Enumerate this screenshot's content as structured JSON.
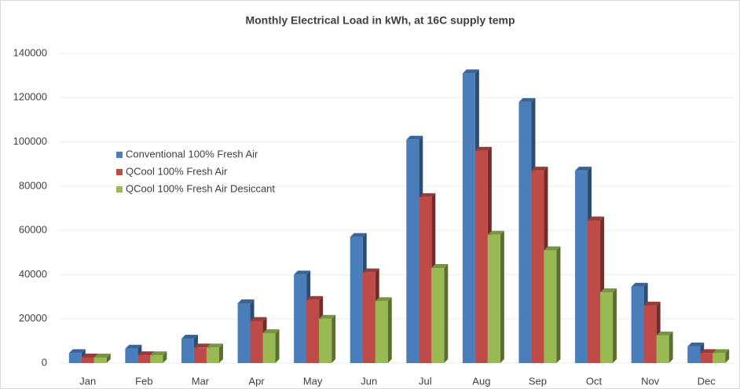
{
  "chart_data": {
    "type": "bar",
    "title": "Monthly Electrical Load in kWh, at 16C supply temp",
    "categories": [
      "Jan",
      "Feb",
      "Mar",
      "Apr",
      "May",
      "Jun",
      "Jul",
      "Aug",
      "Sep",
      "Oct",
      "Nov",
      "Dec"
    ],
    "series": [
      {
        "name": "Conventional 100% Fresh Air",
        "color": "#4a7ebb",
        "values": [
          4500,
          6500,
          11000,
          27000,
          40000,
          57000,
          101000,
          131000,
          118000,
          87000,
          34500,
          7500
        ]
      },
      {
        "name": "QCool 100% Fresh Air",
        "color": "#be4b48",
        "values": [
          2500,
          3500,
          7000,
          19000,
          28500,
          41000,
          75000,
          96000,
          87000,
          64500,
          26000,
          4500
        ]
      },
      {
        "name": "QCool 100% Fresh Air Desiccant",
        "color": "#98b954",
        "values": [
          2500,
          3500,
          7000,
          13500,
          20000,
          28000,
          43000,
          58000,
          51000,
          32000,
          12500,
          4500
        ]
      }
    ],
    "ylim": [
      0,
      140000
    ],
    "yticks": [
      0,
      20000,
      40000,
      60000,
      80000,
      100000,
      120000,
      140000
    ],
    "grid": true,
    "legend": "left"
  }
}
